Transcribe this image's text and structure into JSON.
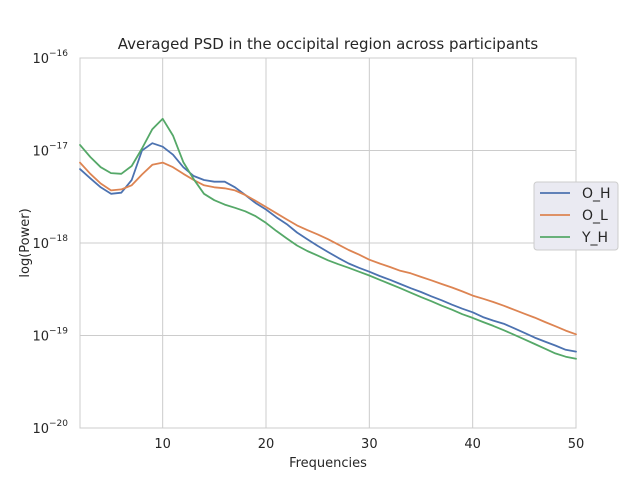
{
  "chart_data": {
    "type": "line",
    "title": "Averaged PSD in the occipital region across participants",
    "xlabel": "Frequencies",
    "ylabel": "log(Power)",
    "x_scale": "linear",
    "y_scale": "log",
    "xlim": [
      2,
      50
    ],
    "ylim": [
      1e-20,
      1e-16
    ],
    "x_ticks": [
      10,
      20,
      30,
      40,
      50
    ],
    "y_ticks": [
      {
        "value": 1e-20,
        "base": "10",
        "exp": "−20"
      },
      {
        "value": 1e-19,
        "base": "10",
        "exp": "−19"
      },
      {
        "value": 1e-18,
        "base": "10",
        "exp": "−18"
      },
      {
        "value": 1e-17,
        "base": "10",
        "exp": "−17"
      },
      {
        "value": 1e-16,
        "base": "10",
        "exp": "−16"
      }
    ],
    "grid": true,
    "legend_position": "center right",
    "x": [
      2,
      3,
      4,
      5,
      6,
      7,
      8,
      9,
      10,
      11,
      12,
      13,
      14,
      15,
      16,
      17,
      18,
      19,
      20,
      21,
      22,
      23,
      24,
      25,
      26,
      27,
      28,
      29,
      30,
      31,
      32,
      33,
      34,
      35,
      36,
      37,
      38,
      39,
      40,
      41,
      42,
      43,
      44,
      45,
      46,
      47,
      48,
      49,
      50
    ],
    "series": [
      {
        "name": "O_H",
        "color": "#4c72b0",
        "values": [
          6.3e-18,
          5e-18,
          4e-18,
          3.4e-18,
          3.5e-18,
          4.8e-18,
          1e-17,
          1.2e-17,
          1.1e-17,
          9e-18,
          6.6e-18,
          5.3e-18,
          4.8e-18,
          4.6e-18,
          4.6e-18,
          4e-18,
          3.3e-18,
          2.7e-18,
          2.3e-18,
          1.9e-18,
          1.6e-18,
          1.3e-18,
          1.1e-18,
          9.3e-19,
          8e-19,
          6.9e-19,
          6e-19,
          5.4e-19,
          4.9e-19,
          4.4e-19,
          4e-19,
          3.6e-19,
          3.25e-19,
          2.95e-19,
          2.65e-19,
          2.4e-19,
          2.15e-19,
          1.95e-19,
          1.78e-19,
          1.58e-19,
          1.45e-19,
          1.34e-19,
          1.2e-19,
          1.07e-19,
          9.5e-20,
          8.6e-20,
          7.8e-20,
          7e-20,
          6.7e-20
        ]
      },
      {
        "name": "O_L",
        "color": "#dd8452",
        "values": [
          7.4e-18,
          5.6e-18,
          4.4e-18,
          3.7e-18,
          3.8e-18,
          4.2e-18,
          5.5e-18,
          7e-18,
          7.4e-18,
          6.6e-18,
          5.6e-18,
          4.8e-18,
          4.2e-18,
          4e-18,
          3.9e-18,
          3.7e-18,
          3.3e-18,
          2.85e-18,
          2.45e-18,
          2.1e-18,
          1.8e-18,
          1.55e-18,
          1.38e-18,
          1.24e-18,
          1.1e-18,
          9.6e-19,
          8.4e-19,
          7.5e-19,
          6.6e-19,
          6e-19,
          5.5e-19,
          5e-19,
          4.7e-19,
          4.3e-19,
          3.95e-19,
          3.6e-19,
          3.3e-19,
          3e-19,
          2.7e-19,
          2.5e-19,
          2.3e-19,
          2.1e-19,
          1.9e-19,
          1.72e-19,
          1.56e-19,
          1.4e-19,
          1.26e-19,
          1.13e-19,
          1.03e-19
        ]
      },
      {
        "name": "Y_H",
        "color": "#55a868",
        "values": [
          1.15e-17,
          8.5e-18,
          6.6e-18,
          5.7e-18,
          5.6e-18,
          6.8e-18,
          1.05e-17,
          1.7e-17,
          2.2e-17,
          1.45e-17,
          7.5e-18,
          4.9e-18,
          3.4e-18,
          2.9e-18,
          2.6e-18,
          2.4e-18,
          2.2e-18,
          1.95e-18,
          1.65e-18,
          1.35e-18,
          1.12e-18,
          9.4e-19,
          8.2e-19,
          7.3e-19,
          6.5e-19,
          5.9e-19,
          5.4e-19,
          4.9e-19,
          4.45e-19,
          4e-19,
          3.6e-19,
          3.25e-19,
          2.9e-19,
          2.6e-19,
          2.35e-19,
          2.1e-19,
          1.9e-19,
          1.7e-19,
          1.55e-19,
          1.4e-19,
          1.27e-19,
          1.14e-19,
          1.02e-19,
          9.1e-20,
          8.1e-20,
          7.2e-20,
          6.4e-20,
          5.9e-20,
          5.6e-20
        ]
      }
    ]
  },
  "colors": {
    "grid": "#cccccc",
    "spine": "#cccccc",
    "text": "#262626",
    "legend_bg": "#eaeaf2",
    "legend_border": "#cccccc"
  }
}
